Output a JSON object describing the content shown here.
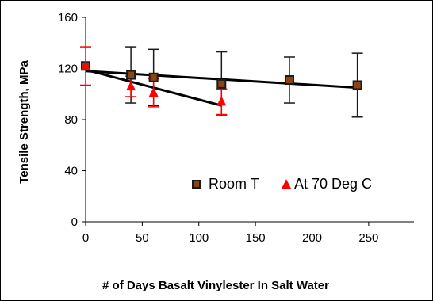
{
  "chart_data": {
    "type": "scatter",
    "xlabel": "# of Days Basalt Vinylester In Salt Water",
    "ylabel": "Tensile Strength, MPa",
    "xlim": [
      0,
      290
    ],
    "ylim": [
      0,
      160
    ],
    "xticks": [
      0,
      50,
      100,
      150,
      200,
      250
    ],
    "yticks": [
      0,
      40,
      80,
      120,
      160
    ],
    "grid": false,
    "legend": "center-right inside plot",
    "series": [
      {
        "name": "Room T",
        "marker": "square",
        "color": "#1a1a1a",
        "fill": "#8b4513",
        "points": [
          {
            "x": 0,
            "y": 122,
            "err": 0
          },
          {
            "x": 40,
            "y": 115,
            "err": 22
          },
          {
            "x": 60,
            "y": 113,
            "err": 22
          },
          {
            "x": 120,
            "y": 108,
            "err": 25
          },
          {
            "x": 180,
            "y": 111,
            "err": 18
          },
          {
            "x": 240,
            "y": 107,
            "err": 25
          }
        ],
        "trend": {
          "x": [
            0,
            240
          ],
          "y": [
            118,
            105
          ]
        }
      },
      {
        "name": "At 70 Deg C",
        "marker": "triangle",
        "color": "#ff0000",
        "points": [
          {
            "x": 0,
            "y": 122,
            "err": 15
          },
          {
            "x": 40,
            "y": 106,
            "err": 8
          },
          {
            "x": 60,
            "y": 101,
            "err": 11
          },
          {
            "x": 120,
            "y": 94,
            "err": 10
          }
        ],
        "trend": {
          "x": [
            0,
            120
          ],
          "y": [
            119,
            91
          ]
        }
      }
    ]
  }
}
